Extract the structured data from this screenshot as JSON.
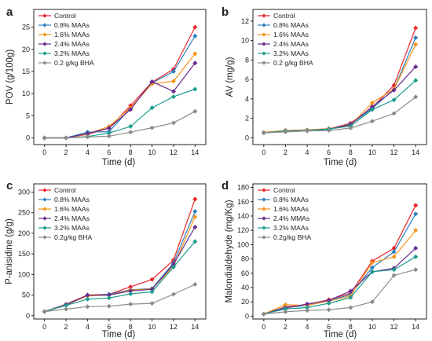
{
  "chart_data": [
    {
      "panel": "a",
      "type": "line",
      "xlabel": "Time (d)",
      "ylabel": "POV (g/100g)",
      "x": [
        0,
        2,
        4,
        6,
        8,
        10,
        12,
        14
      ],
      "xticks": [
        0,
        2,
        4,
        6,
        8,
        10,
        12,
        14
      ],
      "xlim": [
        -1,
        15
      ],
      "yticks": [
        0,
        5,
        10,
        15,
        20,
        25
      ],
      "ylim": [
        -1.5,
        29
      ],
      "legend_position": "top-left",
      "series": [
        {
          "name": "Control",
          "color": "#e8262b",
          "values": [
            0,
            0,
            0.8,
            2.2,
            7.3,
            12.6,
            15.5,
            25
          ]
        },
        {
          "name": "0.8% MAAs",
          "color": "#2b7fbf",
          "values": [
            0,
            0,
            1.3,
            1.4,
            6.7,
            12.4,
            15.0,
            23
          ]
        },
        {
          "name": "1.6% MAAs",
          "color": "#f7941d",
          "values": [
            0,
            0,
            0.9,
            2.6,
            6.8,
            12.2,
            12.8,
            19
          ]
        },
        {
          "name": "2.4% MAAs",
          "color": "#6a2c8e",
          "values": [
            0,
            0,
            1.0,
            2.2,
            6.4,
            12.7,
            10.5,
            16.9
          ]
        },
        {
          "name": "3.2% MAAs",
          "color": "#1b9e8f",
          "values": [
            0,
            0,
            0.3,
            1.1,
            2.6,
            6.8,
            9.3,
            11
          ]
        },
        {
          "name": "0.2 g/kg BHA",
          "color": "#8c8c8c",
          "values": [
            0,
            0,
            0.2,
            0.4,
            1.3,
            2.3,
            3.4,
            6
          ]
        }
      ]
    },
    {
      "panel": "b",
      "type": "line",
      "xlabel": "Time (d)",
      "ylabel": "AV (mg/g)",
      "x": [
        0,
        2,
        4,
        6,
        8,
        10,
        12,
        14
      ],
      "xticks": [
        0,
        2,
        4,
        6,
        8,
        10,
        12,
        14
      ],
      "xlim": [
        -1,
        15
      ],
      "yticks": [
        0,
        2,
        4,
        6,
        8,
        10,
        12
      ],
      "ylim": [
        -0.7,
        13.2
      ],
      "legend_position": "top-left",
      "series": [
        {
          "name": "Control",
          "color": "#e8262b",
          "values": [
            0.55,
            0.75,
            0.8,
            0.9,
            1.5,
            3.1,
            5.4,
            11.3
          ]
        },
        {
          "name": "0.8% MAAs",
          "color": "#2b7fbf",
          "values": [
            0.55,
            0.7,
            0.75,
            0.85,
            1.4,
            3.0,
            5.0,
            10.3
          ]
        },
        {
          "name": "1.6% MAAs",
          "color": "#f7941d",
          "values": [
            0.55,
            0.75,
            0.8,
            0.95,
            1.3,
            3.6,
            5.0,
            9.6
          ]
        },
        {
          "name": "2.4% MAAs",
          "color": "#6a2c8e",
          "values": [
            0.5,
            0.7,
            0.75,
            0.9,
            1.35,
            3.2,
            4.9,
            7.3
          ]
        },
        {
          "name": "3.2% MAAs",
          "color": "#1b9e8f",
          "values": [
            0.5,
            0.7,
            0.75,
            0.9,
            1.2,
            2.9,
            3.9,
            5.9
          ]
        },
        {
          "name": "0.2 g/kg BHA",
          "color": "#8c8c8c",
          "values": [
            0.5,
            0.6,
            0.7,
            0.75,
            1.0,
            1.7,
            2.5,
            4.2
          ]
        }
      ]
    },
    {
      "panel": "c",
      "type": "line",
      "xlabel": "Time (d)",
      "ylabel": "P-anisidine (g/g)",
      "x": [
        0,
        2,
        4,
        6,
        8,
        10,
        12,
        14
      ],
      "xticks": [
        0,
        2,
        4,
        6,
        8,
        10,
        12,
        14
      ],
      "xlim": [
        -1,
        15
      ],
      "yticks": [
        0,
        50,
        100,
        150,
        200,
        250,
        300
      ],
      "ylim": [
        -8,
        320
      ],
      "legend_position": "top-left",
      "series": [
        {
          "name": "Control",
          "color": "#e8262b",
          "values": [
            10,
            28,
            50,
            52,
            70,
            88,
            135,
            283
          ]
        },
        {
          "name": "0.8% MAAs",
          "color": "#2b7fbf",
          "values": [
            10,
            27,
            48,
            52,
            63,
            66,
            128,
            253
          ]
        },
        {
          "name": "1.6% MAAs",
          "color": "#f7941d",
          "values": [
            10,
            26,
            48,
            50,
            62,
            65,
            120,
            240
          ]
        },
        {
          "name": "2.4% MAAs",
          "color": "#6a2c8e",
          "values": [
            10,
            26,
            50,
            50,
            60,
            64,
            125,
            215
          ]
        },
        {
          "name": "3.2% MAAs",
          "color": "#1b9e8f",
          "values": [
            10,
            25,
            40,
            43,
            53,
            58,
            118,
            180
          ]
        },
        {
          "name": "0.2g/kg BHA",
          "color": "#8c8c8c",
          "values": [
            10,
            16,
            22,
            23,
            28,
            30,
            52,
            76
          ]
        }
      ]
    },
    {
      "panel": "d",
      "type": "line",
      "xlabel": "Time (d)",
      "ylabel": "Malondialdehyde (mg/Kg)",
      "x": [
        0,
        2,
        4,
        6,
        8,
        10,
        12,
        14
      ],
      "xticks": [
        0,
        2,
        4,
        6,
        8,
        10,
        12,
        14
      ],
      "xlim": [
        -1,
        15
      ],
      "yticks": [
        0,
        20,
        40,
        60,
        80,
        100,
        120,
        140,
        160,
        180
      ],
      "ylim": [
        -4,
        185
      ],
      "legend_position": "top-left",
      "series": [
        {
          "name": "Control",
          "color": "#e8262b",
          "values": [
            3,
            13,
            16,
            23,
            32,
            77,
            95,
            155
          ]
        },
        {
          "name": "0.8% MAAs",
          "color": "#2b7fbf",
          "values": [
            3,
            12,
            15,
            22,
            30,
            68,
            90,
            143
          ]
        },
        {
          "name": "1.6% MAAs",
          "color": "#f7941d",
          "values": [
            3,
            16,
            15,
            21,
            28,
            75,
            83,
            120
          ]
        },
        {
          "name": "2.4% MMAs",
          "color": "#6a2c8e",
          "values": [
            3,
            11,
            17,
            22,
            35,
            62,
            67,
            95
          ]
        },
        {
          "name": "3.2% MAAs",
          "color": "#1b9e8f",
          "values": [
            3,
            10,
            12,
            18,
            26,
            62,
            65,
            83
          ]
        },
        {
          "name": "0.2g/kg BHA",
          "color": "#8c8c8c",
          "values": [
            3,
            6,
            8,
            9,
            12,
            20,
            57,
            65
          ]
        }
      ]
    }
  ]
}
